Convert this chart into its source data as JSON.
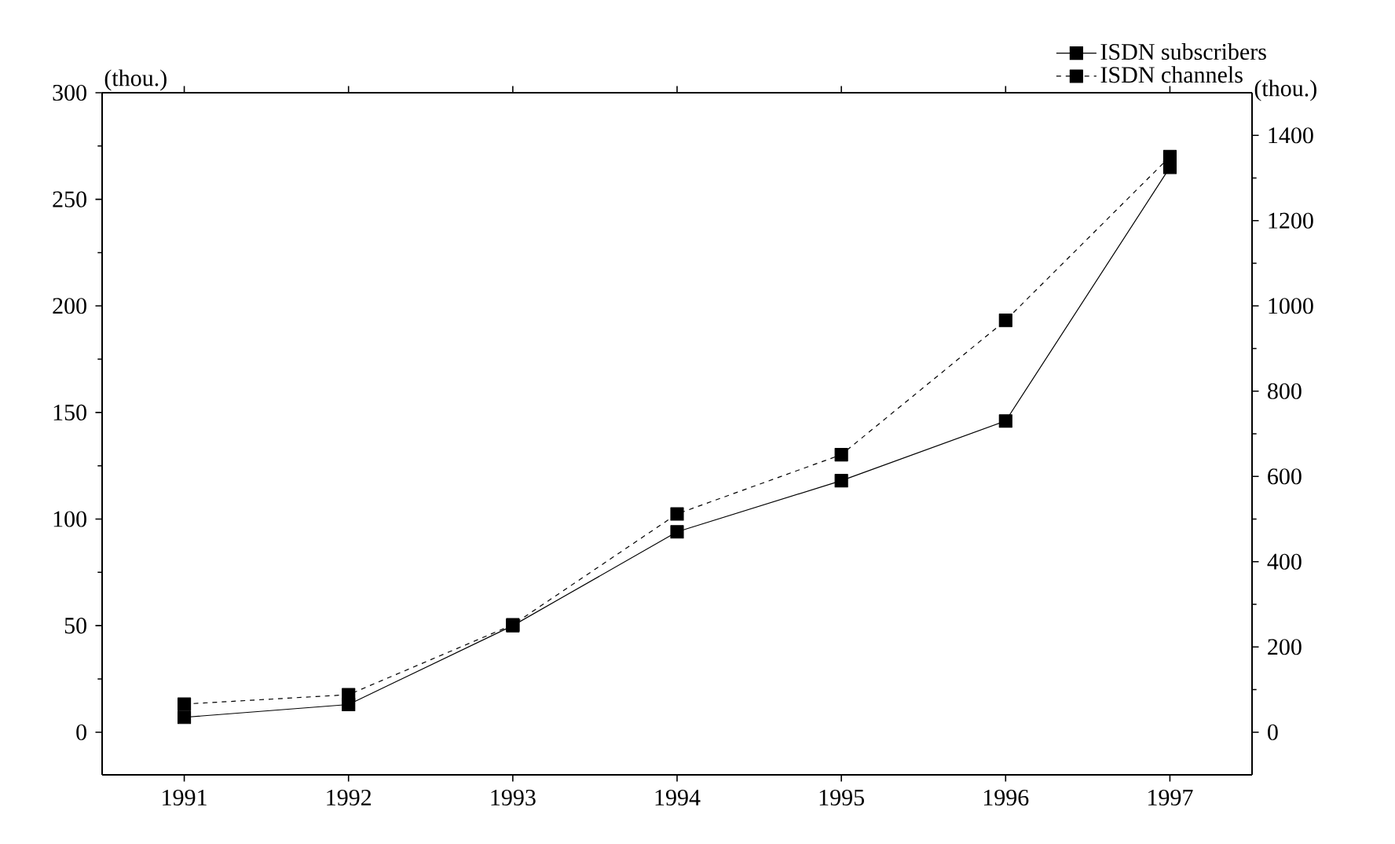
{
  "chart_data": {
    "type": "line",
    "categories": [
      "1991",
      "1992",
      "1993",
      "1994",
      "1995",
      "1996",
      "1997"
    ],
    "series": [
      {
        "name": "ISDN subscribers",
        "color": "#000000",
        "line_style": "solid",
        "values": [
          7,
          13,
          50,
          94,
          118,
          146,
          265
        ]
      },
      {
        "name": "ISDN channels",
        "color": "#000000",
        "line_style": "dashed",
        "axis": "y2",
        "values": [
          66,
          88,
          252,
          512,
          651,
          966,
          1350
        ]
      }
    ],
    "ylabel": "(thou.)",
    "y2label": "(thou.)",
    "ylim": [
      -20,
      300
    ],
    "yticks": [
      0,
      50,
      100,
      150,
      200,
      250,
      300
    ],
    "y2lim": [
      -100,
      1500
    ],
    "y2ticks": [
      0,
      200,
      400,
      600,
      800,
      1000,
      1200,
      1400
    ],
    "marker": "square",
    "grid": false,
    "legend": "top right"
  }
}
